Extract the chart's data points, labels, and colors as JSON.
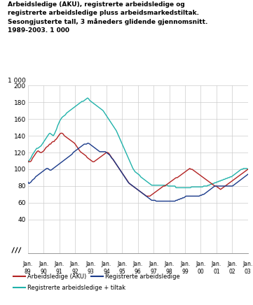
{
  "title_lines": [
    "Arbeidsledige (AKU), registrerte arbeidsledige og",
    "registrerte arbeidsledige pluss arbeidsmarkedstiltak.",
    "Sesongjusterte tall, 3 måneders glidende gjennomsnitt.",
    "1989-2003. 1 000"
  ],
  "ylabel": "1 000",
  "ylim": [
    0,
    200
  ],
  "yticks": [
    0,
    40,
    60,
    80,
    100,
    120,
    140,
    160,
    180,
    200
  ],
  "xlabel_years": [
    "89",
    "90",
    "91",
    "92",
    "93",
    "94",
    "95",
    "96",
    "97",
    "98",
    "99",
    "00",
    "01",
    "02",
    "03"
  ],
  "colors": {
    "aku": "#b22222",
    "reg": "#1a3a8a",
    "tiltak": "#20b2aa"
  },
  "legend": [
    {
      "label": "Arbeidsledige (AKU)",
      "color": "#b22222"
    },
    {
      "label": "Registrerte arbeidsledige",
      "color": "#1a3a8a"
    },
    {
      "label": "Registrerte arbeidsledige + tiltak",
      "color": "#20b2aa"
    }
  ],
  "aku": [
    110,
    109,
    109,
    110,
    113,
    115,
    117,
    119,
    121,
    122,
    121,
    120,
    120,
    121,
    122,
    124,
    126,
    127,
    128,
    130,
    130,
    132,
    133,
    133,
    135,
    136,
    138,
    140,
    142,
    143,
    143,
    142,
    140,
    139,
    138,
    137,
    136,
    135,
    134,
    133,
    132,
    131,
    129,
    127,
    125,
    123,
    121,
    120,
    119,
    118,
    117,
    116,
    114,
    113,
    112,
    111,
    110,
    109,
    109,
    110,
    111,
    112,
    113,
    114,
    115,
    116,
    117,
    118,
    119,
    120,
    120,
    119,
    117,
    115,
    113,
    111,
    109,
    107,
    105,
    103,
    101,
    99,
    97,
    95,
    93,
    91,
    89,
    87,
    85,
    83,
    82,
    81,
    80,
    79,
    78,
    77,
    76,
    75,
    74,
    73,
    72,
    71,
    70,
    69,
    68,
    68,
    68,
    68,
    69,
    70,
    71,
    72,
    73,
    74,
    75,
    76,
    77,
    78,
    79,
    80,
    80,
    81,
    82,
    83,
    84,
    85,
    86,
    87,
    88,
    89,
    90,
    90,
    91,
    92,
    93,
    94,
    95,
    96,
    97,
    98,
    99,
    100,
    101,
    100,
    100,
    99,
    98,
    97,
    96,
    95,
    94,
    93,
    92,
    91,
    90,
    89,
    88,
    87,
    86,
    85,
    84,
    83,
    82,
    81,
    80,
    80,
    79,
    78,
    77,
    76,
    77,
    78,
    79,
    80,
    81,
    82,
    83,
    84,
    85,
    86,
    87,
    88,
    89,
    90,
    91,
    92,
    93,
    94,
    95,
    96,
    97,
    98,
    99,
    100
  ],
  "reg": [
    85,
    83,
    84,
    85,
    87,
    88,
    89,
    91,
    92,
    93,
    94,
    95,
    96,
    97,
    98,
    99,
    100,
    101,
    101,
    100,
    99,
    99,
    100,
    101,
    102,
    103,
    104,
    105,
    106,
    107,
    108,
    109,
    110,
    111,
    112,
    113,
    114,
    115,
    116,
    117,
    118,
    120,
    121,
    122,
    123,
    124,
    125,
    126,
    127,
    128,
    129,
    130,
    130,
    130,
    131,
    131,
    130,
    129,
    128,
    127,
    126,
    125,
    124,
    123,
    122,
    121,
    121,
    121,
    121,
    121,
    121,
    120,
    119,
    118,
    117,
    115,
    113,
    112,
    110,
    108,
    106,
    104,
    102,
    100,
    98,
    96,
    94,
    92,
    90,
    88,
    86,
    84,
    83,
    82,
    81,
    80,
    79,
    78,
    77,
    76,
    75,
    74,
    73,
    72,
    71,
    70,
    69,
    68,
    67,
    66,
    65,
    64,
    63,
    63,
    63,
    63,
    62,
    62,
    62,
    62,
    62,
    62,
    62,
    62,
    62,
    62,
    62,
    62,
    62,
    62,
    62,
    62,
    62,
    62,
    63,
    63,
    64,
    64,
    65,
    65,
    66,
    66,
    67,
    68,
    68,
    68,
    68,
    68,
    68,
    68,
    68,
    68,
    68,
    68,
    68,
    68,
    69,
    69,
    70,
    70,
    71,
    72,
    73,
    74,
    75,
    76,
    77,
    78,
    79,
    80,
    80,
    80,
    80,
    80,
    80,
    80,
    80,
    80,
    80,
    80,
    80,
    80,
    80,
    80,
    80,
    80,
    81,
    82,
    83,
    84,
    85,
    86,
    87,
    88,
    89,
    90,
    91,
    92,
    93,
    94
  ],
  "tiltak": [
    108,
    110,
    112,
    114,
    117,
    119,
    121,
    123,
    125,
    125,
    126,
    127,
    128,
    130,
    132,
    134,
    136,
    138,
    140,
    142,
    143,
    142,
    141,
    140,
    142,
    145,
    148,
    152,
    155,
    158,
    160,
    162,
    163,
    164,
    165,
    167,
    168,
    169,
    170,
    171,
    172,
    173,
    174,
    175,
    176,
    177,
    178,
    179,
    180,
    181,
    181,
    182,
    183,
    184,
    185,
    184,
    182,
    181,
    180,
    179,
    178,
    177,
    176,
    175,
    174,
    173,
    172,
    171,
    170,
    168,
    166,
    164,
    162,
    160,
    158,
    156,
    154,
    152,
    150,
    148,
    146,
    143,
    140,
    137,
    134,
    131,
    128,
    125,
    122,
    119,
    116,
    113,
    110,
    107,
    104,
    101,
    99,
    97,
    96,
    95,
    94,
    93,
    91,
    90,
    89,
    88,
    87,
    86,
    85,
    84,
    83,
    82,
    81,
    81,
    81,
    81,
    81,
    81,
    81,
    81,
    81,
    81,
    81,
    81,
    81,
    81,
    81,
    80,
    80,
    80,
    80,
    80,
    80,
    80,
    78,
    78,
    78,
    78,
    78,
    78,
    78,
    78,
    78,
    78,
    78,
    78,
    78,
    78,
    79,
    79,
    79,
    79,
    79,
    79,
    79,
    79,
    79,
    79,
    79,
    80,
    80,
    80,
    80,
    81,
    81,
    82,
    82,
    83,
    83,
    84,
    84,
    85,
    85,
    86,
    86,
    87,
    87,
    88,
    88,
    89,
    89,
    90,
    90,
    91,
    91,
    92,
    93,
    94,
    95,
    96,
    97,
    98,
    99,
    100,
    100,
    101,
    101,
    101,
    101,
    100
  ]
}
